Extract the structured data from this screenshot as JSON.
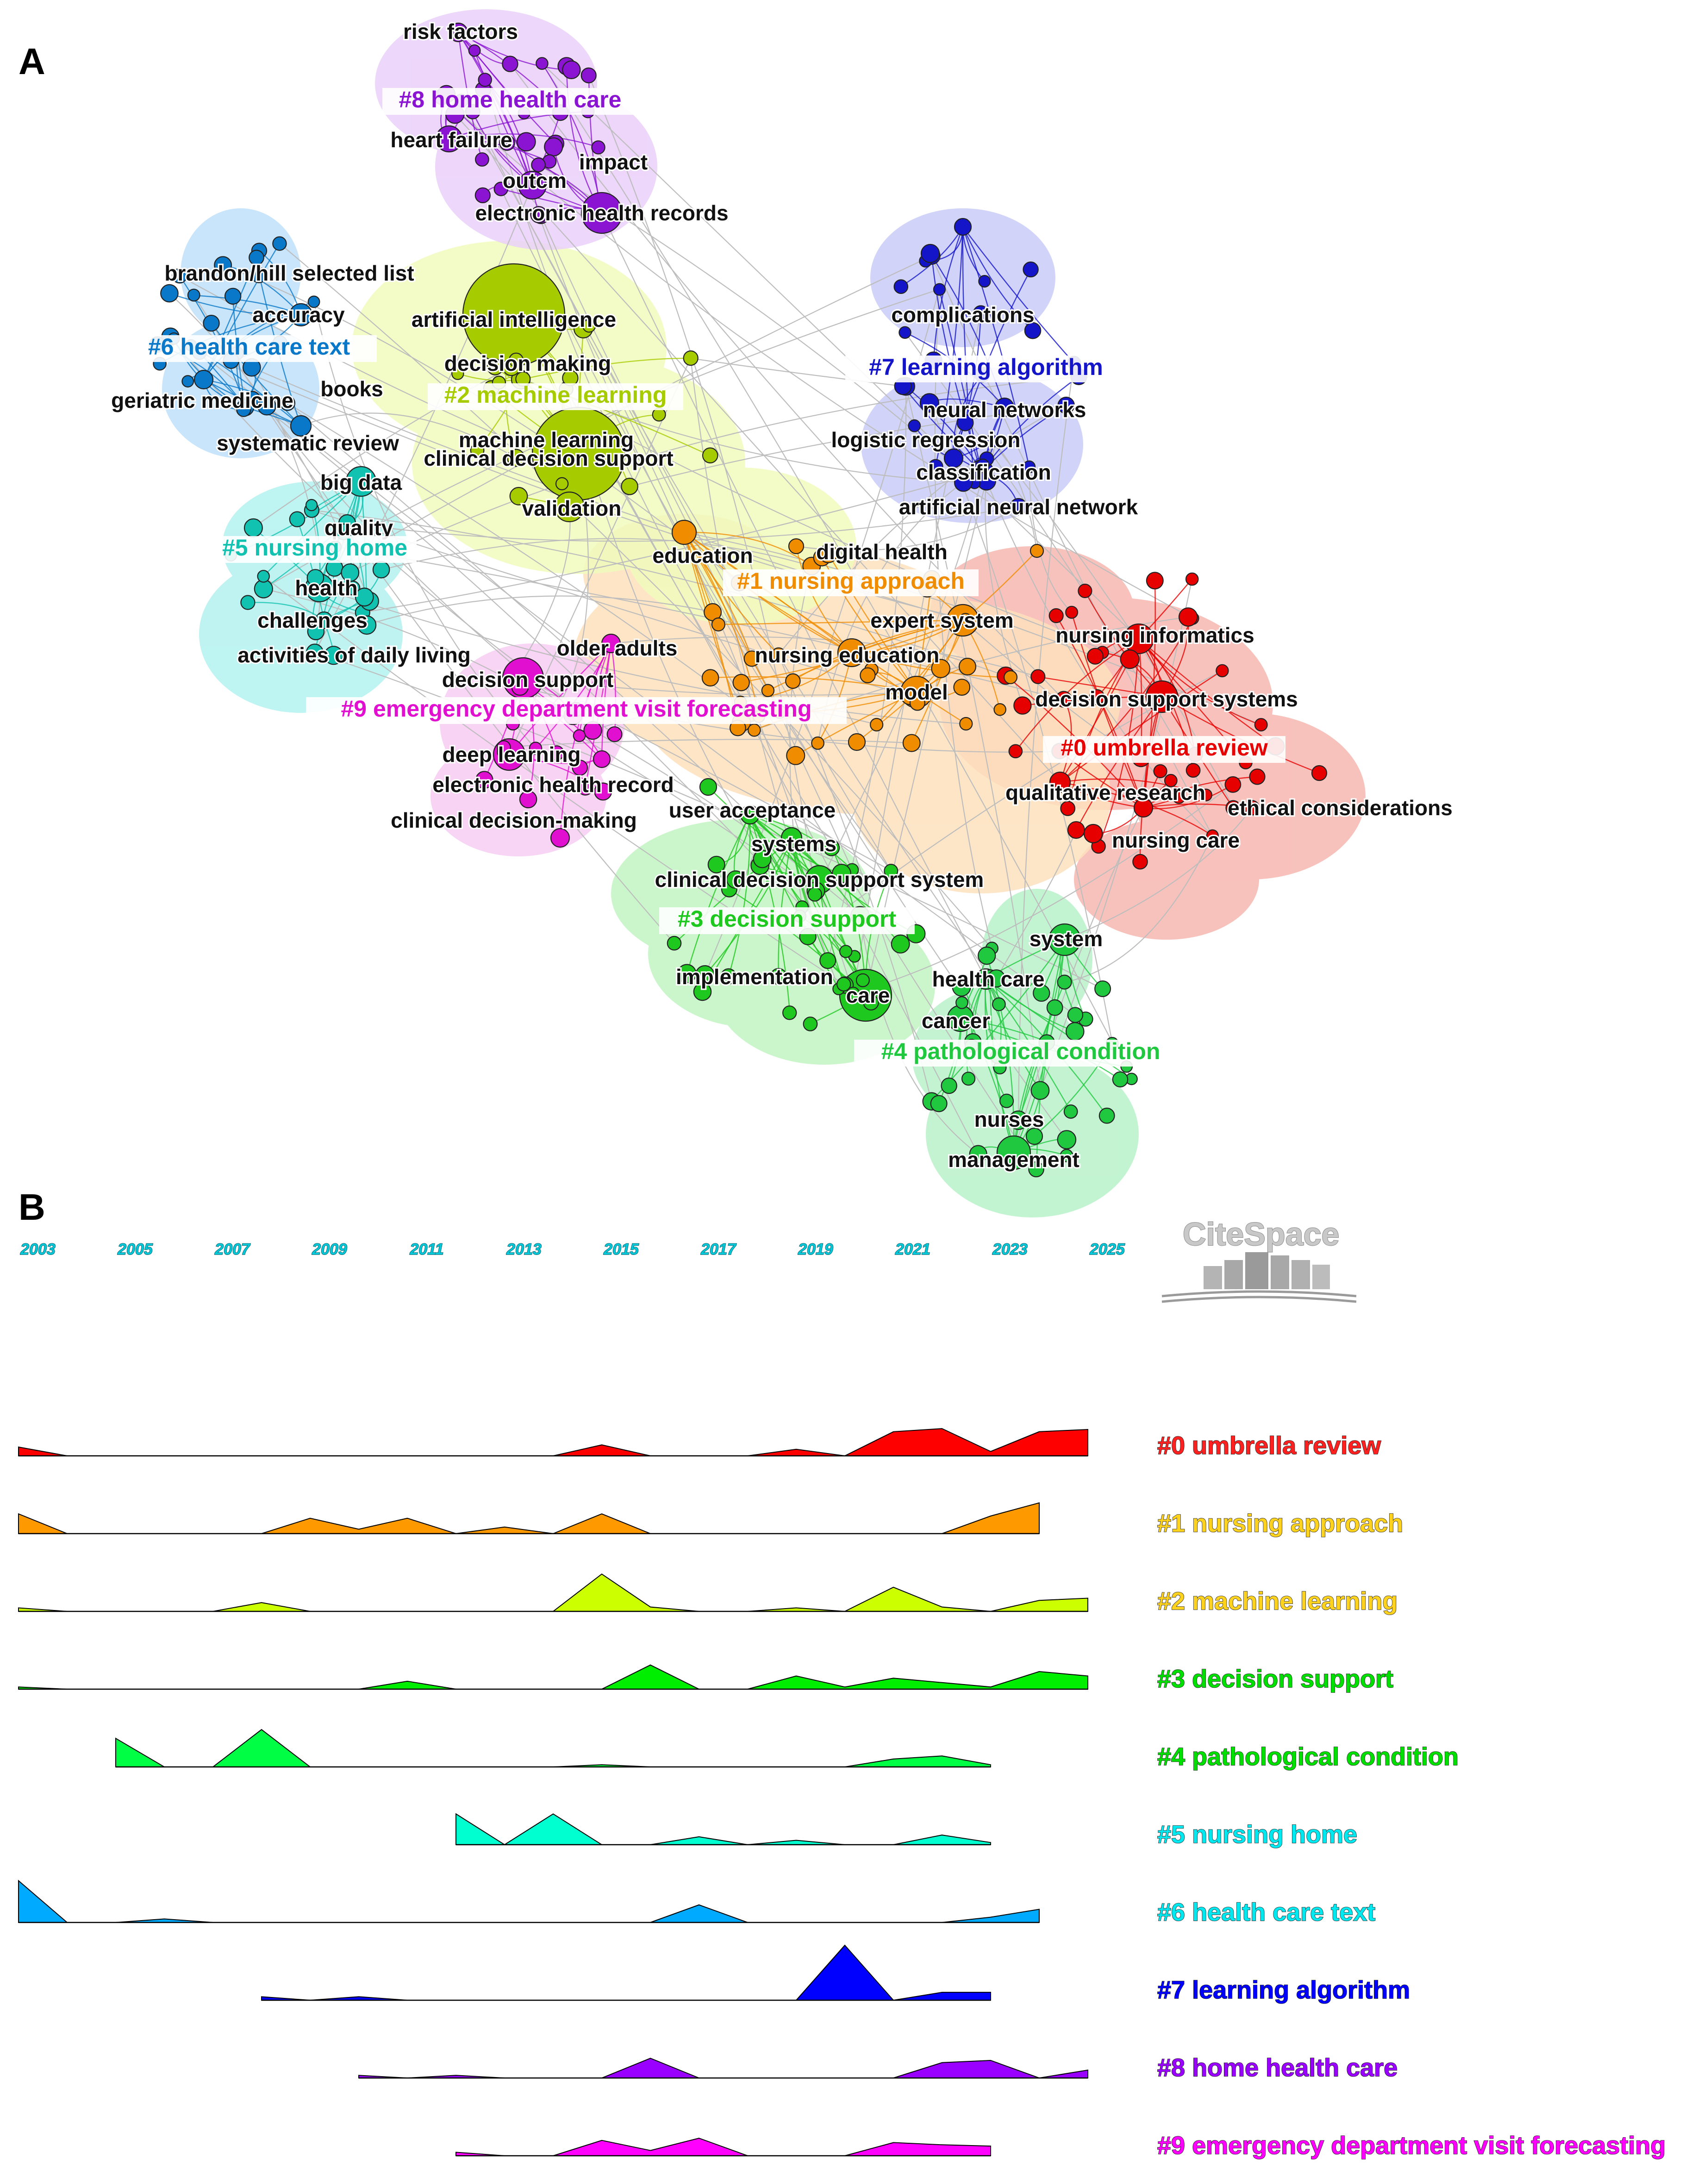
{
  "panel_a_letter": "A",
  "panel_b_letter": "B",
  "logo_text": "CiteSpace",
  "chart_data": [
    {
      "type": "network",
      "panel": "A",
      "clusters": [
        {
          "id": 0,
          "label": "#0 umbrella review",
          "color": "#e60000",
          "hull": "#f7b7b0"
        },
        {
          "id": 1,
          "label": "#1 nursing approach",
          "color": "#f08c00",
          "hull": "#fde1bd"
        },
        {
          "id": 2,
          "label": "#2 machine learning",
          "color": "#a6cc00",
          "hull": "#f1fbbd"
        },
        {
          "id": 3,
          "label": "#3 decision support",
          "color": "#1ec81e",
          "hull": "#c2f5c2"
        },
        {
          "id": 4,
          "label": "#4 pathological condition",
          "color": "#20c840",
          "hull": "#b9f2c9"
        },
        {
          "id": 5,
          "label": "#5 nursing home",
          "color": "#12c2b0",
          "hull": "#b3f2ef"
        },
        {
          "id": 6,
          "label": "#6 health care text",
          "color": "#0a78c8",
          "hull": "#bfe1fa"
        },
        {
          "id": 7,
          "label": "#7 learning algorithm",
          "color": "#1414c8",
          "hull": "#c9cdf7"
        },
        {
          "id": 8,
          "label": "#8 home health care",
          "color": "#8a14d2",
          "hull": "#ead0f9"
        },
        {
          "id": 9,
          "label": "#9 emergency department visit forecasting",
          "color": "#e10fd0",
          "hull": "#f7ccf3"
        }
      ],
      "terms": [
        {
          "text": "risk factors",
          "cluster": 8
        },
        {
          "text": "heart failure",
          "cluster": 8
        },
        {
          "text": "impact",
          "cluster": 8
        },
        {
          "text": "outcm",
          "cluster": 8
        },
        {
          "text": "electronic health records",
          "cluster": 8
        },
        {
          "text": "brandon/hill selected list",
          "cluster": 6
        },
        {
          "text": "accuracy",
          "cluster": 6
        },
        {
          "text": "geriatric medicine",
          "cluster": 6
        },
        {
          "text": "books",
          "cluster": 6
        },
        {
          "text": "systematic review",
          "cluster": 6
        },
        {
          "text": "artificial intelligence",
          "cluster": 2
        },
        {
          "text": "decision making",
          "cluster": 2
        },
        {
          "text": "machine learning",
          "cluster": 2
        },
        {
          "text": "clinical decision support",
          "cluster": 2
        },
        {
          "text": "validation",
          "cluster": 2
        },
        {
          "text": "big data",
          "cluster": 5
        },
        {
          "text": "quality",
          "cluster": 5
        },
        {
          "text": "health",
          "cluster": 5
        },
        {
          "text": "challenges",
          "cluster": 5
        },
        {
          "text": "activities of daily living",
          "cluster": 5
        },
        {
          "text": "complications",
          "cluster": 7
        },
        {
          "text": "neural networks",
          "cluster": 7
        },
        {
          "text": "logistic regression",
          "cluster": 7
        },
        {
          "text": "classification",
          "cluster": 7
        },
        {
          "text": "artificial neural network",
          "cluster": 7
        },
        {
          "text": "education",
          "cluster": 1
        },
        {
          "text": "digital health",
          "cluster": 1
        },
        {
          "text": "expert system",
          "cluster": 1
        },
        {
          "text": "nursing education",
          "cluster": 1
        },
        {
          "text": "model",
          "cluster": 1
        },
        {
          "text": "nursing informatics",
          "cluster": 0
        },
        {
          "text": "decision support systems",
          "cluster": 0
        },
        {
          "text": "qualitative research",
          "cluster": 0
        },
        {
          "text": "ethical considerations",
          "cluster": 0
        },
        {
          "text": "nursing care",
          "cluster": 0
        },
        {
          "text": "older adults",
          "cluster": 9
        },
        {
          "text": "decision support",
          "cluster": 9
        },
        {
          "text": "deep learning",
          "cluster": 9
        },
        {
          "text": "electronic health record",
          "cluster": 9
        },
        {
          "text": "clinical decision-making",
          "cluster": 9
        },
        {
          "text": "user acceptance",
          "cluster": 3
        },
        {
          "text": "systems",
          "cluster": 3
        },
        {
          "text": "clinical decision support system",
          "cluster": 3
        },
        {
          "text": "implementation",
          "cluster": 3
        },
        {
          "text": "care",
          "cluster": 3
        },
        {
          "text": "system",
          "cluster": 4
        },
        {
          "text": "health care",
          "cluster": 4
        },
        {
          "text": "cancer",
          "cluster": 4
        },
        {
          "text": "nurses",
          "cluster": 4
        },
        {
          "text": "management",
          "cluster": 4
        }
      ]
    },
    {
      "type": "area",
      "panel": "B",
      "title": "",
      "xlabel": "",
      "ylabel": "",
      "years": [
        2003,
        2004,
        2005,
        2006,
        2007,
        2008,
        2009,
        2010,
        2011,
        2012,
        2013,
        2014,
        2015,
        2016,
        2017,
        2018,
        2019,
        2020,
        2021,
        2022,
        2023,
        2024,
        2025
      ],
      "year_ticks": [
        "2003",
        "2005",
        "2007",
        "2009",
        "2011",
        "2013",
        "2015",
        "2017",
        "2019",
        "2021",
        "2023",
        "2025"
      ],
      "series": [
        {
          "name": "#0 umbrella review",
          "color": "#ff0000",
          "label_color": "#ff2020",
          "start": 2003,
          "values": [
            0.2,
            0,
            0,
            0,
            0,
            0,
            0,
            0,
            0,
            0,
            0,
            0,
            0.25,
            0,
            0,
            0,
            0.15,
            0,
            0.55,
            0.62,
            0.1,
            0.55,
            0.6
          ]
        },
        {
          "name": "#1 nursing approach",
          "color": "#ff9900",
          "label_color": "#ffd21e",
          "start": 2003,
          "values": [
            0.45,
            0,
            0,
            0,
            0,
            0,
            0.35,
            0.1,
            0.35,
            0,
            0.15,
            0,
            0.45,
            0,
            0,
            0,
            0,
            0,
            0,
            0,
            0.4,
            0.7
          ]
        },
        {
          "name": "#2 machine learning",
          "color": "#ccff00",
          "label_color": "#ffd21e",
          "start": 2003,
          "values": [
            0.08,
            0,
            0,
            0,
            0,
            0.2,
            0,
            0,
            0,
            0,
            0,
            0,
            0.85,
            0.1,
            0,
            0,
            0.08,
            0,
            0.55,
            0.1,
            0,
            0.25,
            0.3
          ]
        },
        {
          "name": "#3 decision support",
          "color": "#00ee00",
          "label_color": "#00e000",
          "start": 2003,
          "values": [
            0.05,
            0,
            0,
            0,
            0,
            0,
            0,
            0,
            0.18,
            0,
            0,
            0,
            0,
            0.55,
            0,
            0,
            0.3,
            0.05,
            0.25,
            0.15,
            0.05,
            0.4,
            0.3
          ]
        },
        {
          "name": "#4 pathological condition",
          "color": "#00ff44",
          "label_color": "#00e000",
          "start": 2005,
          "values": [
            0.65,
            0,
            0,
            0.85,
            0,
            0,
            0,
            0,
            0,
            0,
            0.05,
            0,
            0,
            0,
            0,
            0,
            0.18,
            0.25,
            0.05
          ]
        },
        {
          "name": "#5 nursing home",
          "color": "#00ffd0",
          "label_color": "#00e8f0",
          "start": 2012,
          "values": [
            0.7,
            0,
            0.7,
            0,
            0,
            0.18,
            0,
            0.1,
            0,
            0,
            0.22,
            0.05
          ]
        },
        {
          "name": "#6 health care text",
          "color": "#00aaff",
          "label_color": "#00e8f0",
          "start": 2003,
          "values": [
            0.95,
            0,
            0,
            0.08,
            0,
            0,
            0,
            0,
            0,
            0,
            0,
            0,
            0,
            0,
            0.4,
            0,
            0,
            0,
            0,
            0,
            0.12,
            0.3
          ]
        },
        {
          "name": "#7 learning algorithm",
          "color": "#0000ff",
          "label_color": "#0000ff",
          "start": 2008,
          "values": [
            0.08,
            0,
            0.08,
            0,
            0,
            0,
            0,
            0,
            0,
            0,
            0,
            0,
            1.25,
            0,
            0.18,
            0.18
          ]
        },
        {
          "name": "#8 home health care",
          "color": "#9900ff",
          "label_color": "#9900ff",
          "start": 2010,
          "values": [
            0.06,
            0,
            0.06,
            0,
            0,
            0,
            0.45,
            0,
            0,
            0,
            0,
            0,
            0.35,
            0.4,
            0,
            0.18
          ]
        },
        {
          "name": "#9 emergency department visit forecasting",
          "color": "#ff00ff",
          "label_color": "#ff00ff",
          "start": 2012,
          "values": [
            0.08,
            0,
            0,
            0.35,
            0.12,
            0.4,
            0,
            0,
            0,
            0.3,
            0.25,
            0.22
          ]
        }
      ]
    }
  ]
}
